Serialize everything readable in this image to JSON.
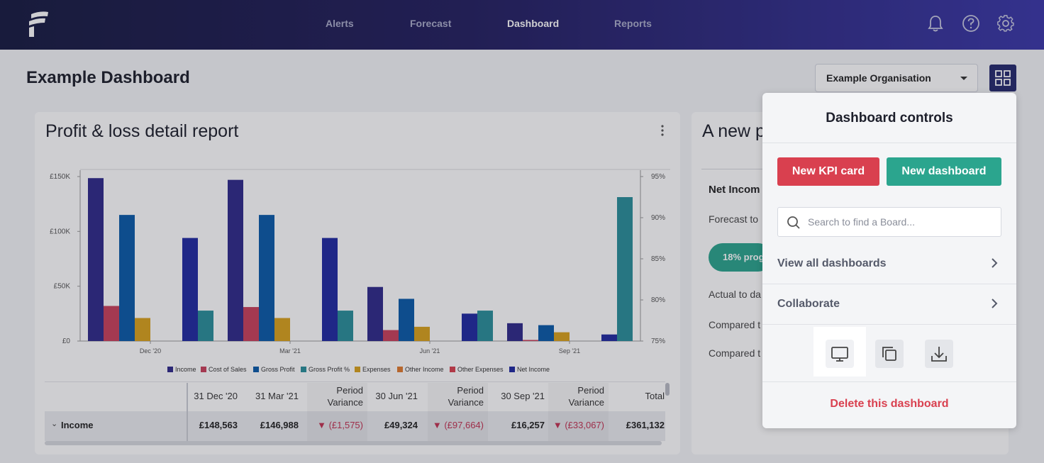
{
  "nav": {
    "items": [
      {
        "label": "Alerts",
        "active": false
      },
      {
        "label": "Forecast",
        "active": false
      },
      {
        "label": "Dashboard",
        "active": true
      },
      {
        "label": "Reports",
        "active": false
      }
    ],
    "icons": [
      "bell-icon",
      "help-icon",
      "gear-icon"
    ]
  },
  "page": {
    "title": "Example Dashboard",
    "organisation": "Example Organisation"
  },
  "pl_card": {
    "title": "Profit & loss detail report",
    "legend": [
      "Income",
      "Cost of Sales",
      "Gross Profit",
      "Gross Profit %",
      "Expenses",
      "Other Income",
      "Other Expenses",
      "Net Income"
    ],
    "table": {
      "headers": [
        "31 Dec '20",
        "31 Mar '21",
        "Period Variance",
        "30 Jun '21",
        "Period Variance",
        "30 Sep '21",
        "Period Variance",
        "Total"
      ],
      "row_label": "Income",
      "row_values": [
        "£148,563",
        "£146,988",
        "▼ (£1,575)",
        "£49,324",
        "▼ (£97,664)",
        "£16,257",
        "▼ (£33,067)",
        "£361,132"
      ]
    }
  },
  "chart_data": {
    "type": "bar",
    "categories": [
      "Dec '20",
      "Mar '21",
      "Jun '21",
      "Sep '21"
    ],
    "series": [
      {
        "name": "Income",
        "color": "#2f2a8a",
        "values": [
          148563,
          146988,
          49324,
          16257
        ]
      },
      {
        "name": "Cost of Sales",
        "color": "#c9415c",
        "values": [
          32000,
          31000,
          10000,
          1000
        ]
      },
      {
        "name": "Gross Profit",
        "color": "#0a5aa8",
        "values": [
          115000,
          115000,
          38500,
          14500
        ]
      },
      {
        "name": "Gross Profit %",
        "color": "#2a8f9a",
        "values": [
          78.7,
          78.7,
          78.7,
          92.5
        ]
      },
      {
        "name": "Expenses",
        "color": "#d9a21c",
        "values": [
          21000,
          21000,
          13000,
          8000
        ]
      },
      {
        "name": "Other Income",
        "color": "#e07a2e",
        "values": [
          0,
          0,
          0,
          0
        ]
      },
      {
        "name": "Other Expenses",
        "color": "#d9404f",
        "values": [
          0,
          0,
          0,
          0
        ]
      },
      {
        "name": "Net Income",
        "color": "#1f2aa0",
        "values": [
          94000,
          94000,
          25000,
          6000
        ]
      }
    ],
    "bars_per_group_shown": [
      "Income",
      "Cost of Sales",
      "Gross Profit",
      "Expenses",
      "Net Income",
      "Gross Profit %"
    ],
    "y_left": {
      "ticks": [
        "£0",
        "£50K",
        "£100K",
        "£150K"
      ],
      "ylim": [
        0,
        150000
      ]
    },
    "y_right": {
      "ticks": [
        "75%",
        "80%",
        "85%",
        "90%",
        "95%"
      ],
      "ylim": [
        75,
        95
      ]
    },
    "grid": false,
    "legend_position": "bottom"
  },
  "second_card": {
    "title": "A new p",
    "section": "Net Incom",
    "forecast": "Forecast to",
    "progress": "18% prog",
    "actual": "Actual to da",
    "compared1": "Compared t",
    "compared2": "Compared t"
  },
  "controls": {
    "title": "Dashboard controls",
    "new_kpi": "New KPI card",
    "new_dashboard": "New dashboard",
    "search_placeholder": "Search to find a Board...",
    "view_all": "View all dashboards",
    "collaborate": "Collaborate",
    "delete": "Delete this dashboard",
    "icons": [
      "monitor-icon",
      "copy-icon",
      "download-icon"
    ]
  }
}
